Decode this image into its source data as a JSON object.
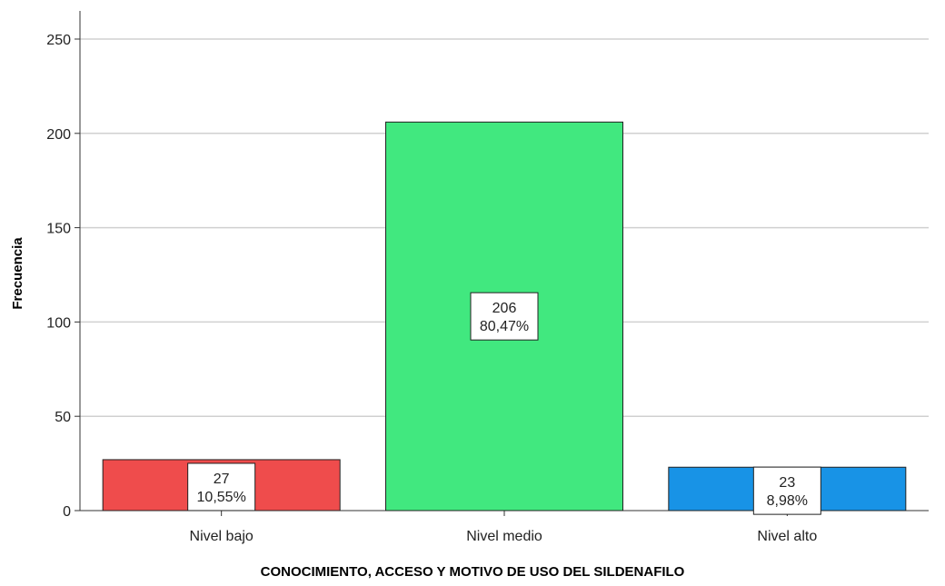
{
  "chart_data": {
    "type": "bar",
    "categories": [
      "Nivel bajo",
      "Nivel medio",
      "Nivel alto"
    ],
    "values": [
      27,
      206,
      23
    ],
    "percentages": [
      "10,55%",
      "80,47%",
      "8,98%"
    ],
    "colors": [
      "#ef4c4c",
      "#41e87f",
      "#1893e6"
    ],
    "xlabel": "CONOCIMIENTO, ACCESO Y MOTIVO DE USO DEL SILDENAFILO",
    "ylabel": "Frecuencia",
    "ylim": [
      0,
      260
    ],
    "yticks": [
      0,
      50,
      100,
      150,
      200,
      250
    ],
    "grid": true
  }
}
